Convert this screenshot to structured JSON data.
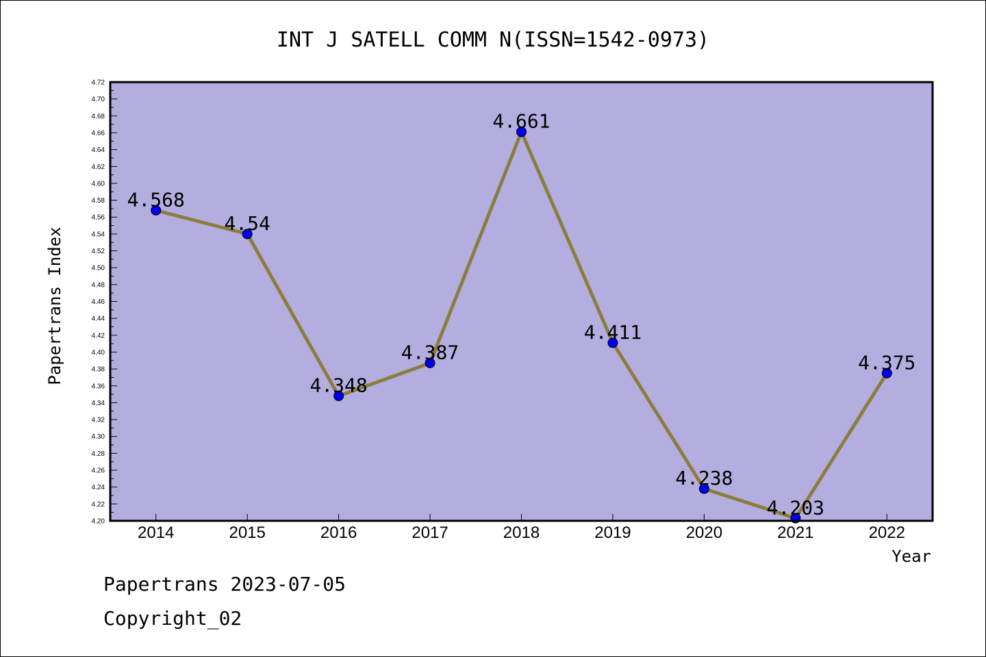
{
  "chart_data": {
    "type": "line",
    "title": "INT J SATELL COMM N(ISSN=1542-0973)",
    "xlabel": "Year",
    "ylabel": "Papertrans Index",
    "categories": [
      "2014",
      "2015",
      "2016",
      "2017",
      "2018",
      "2019",
      "2020",
      "2021",
      "2022"
    ],
    "series": [
      {
        "values": [
          4.568,
          4.54,
          4.348,
          4.387,
          4.661,
          4.411,
          4.238,
          4.203,
          4.375
        ],
        "data_labels": [
          "4.568",
          "4.54",
          "4.348",
          "4.387",
          "4.661",
          "4.411",
          "4.238",
          "4.203",
          "4.375"
        ]
      }
    ],
    "ylim": [
      4.2,
      4.72
    ],
    "ytick_labels": [
      "4.20",
      "4.22",
      "4.24",
      "4.26",
      "4.28",
      "4.30",
      "4.32",
      "4.34",
      "4.36",
      "4.38",
      "4.40",
      "4.42",
      "4.44",
      "4.46",
      "4.48",
      "4.50",
      "4.52",
      "4.54",
      "4.56",
      "4.58",
      "4.60",
      "4.62",
      "4.64",
      "4.66",
      "4.68",
      "4.70",
      "4.72"
    ],
    "grid": false,
    "legend": "none",
    "colors": {
      "plot_background": "#b4aee0",
      "line": "#8b7d3c",
      "marker": "#0000ee"
    }
  },
  "footer": {
    "line1": "Papertrans 2023-07-05",
    "line2": "Copyright_02"
  }
}
